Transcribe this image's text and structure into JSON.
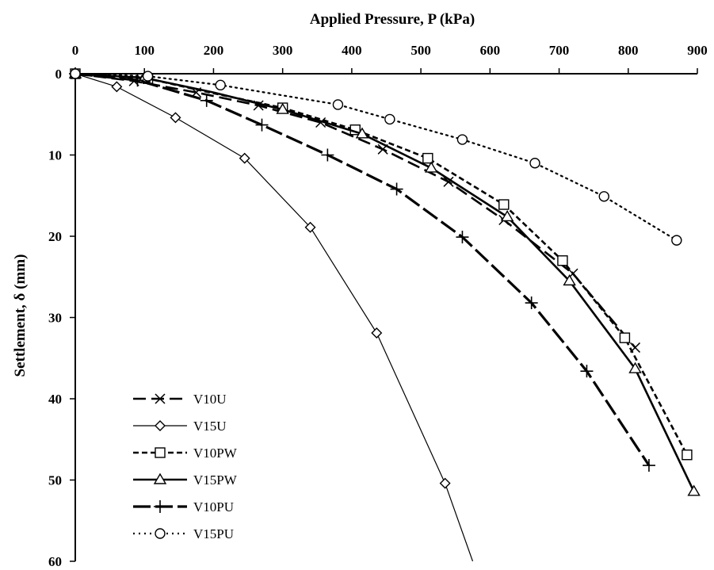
{
  "chart_data": {
    "type": "line",
    "title": "",
    "xlabel": "Applied Pressure, P (kPa)",
    "ylabel": "Settlement, δ (mm)",
    "xlim": [
      0,
      900
    ],
    "ylim": [
      0,
      60
    ],
    "y_inverted": true,
    "x_axis_position": "top",
    "x_ticks": [
      0,
      100,
      200,
      300,
      400,
      500,
      600,
      700,
      800,
      900
    ],
    "y_ticks": [
      0,
      10,
      20,
      30,
      40,
      50,
      60
    ],
    "grid": false,
    "legend_position": "bottom-left",
    "series": [
      {
        "name": "V10U",
        "line": "dashed-long",
        "marker": "x",
        "stroke_width": 2.6,
        "color": "#000000",
        "points": [
          [
            0,
            0
          ],
          [
            85,
            0.9
          ],
          [
            175,
            2.3
          ],
          [
            265,
            3.9
          ],
          [
            355,
            6.0
          ],
          [
            445,
            9.3
          ],
          [
            540,
            13.3
          ],
          [
            620,
            18.0
          ],
          [
            720,
            24.6
          ],
          [
            810,
            33.7
          ]
        ],
        "markers": [
          [
            0,
            0
          ],
          [
            85,
            0.9
          ],
          [
            175,
            2.3
          ],
          [
            265,
            3.9
          ],
          [
            355,
            6.0
          ],
          [
            445,
            9.3
          ],
          [
            540,
            13.3
          ],
          [
            620,
            18.0
          ],
          [
            720,
            24.6
          ],
          [
            810,
            33.7
          ]
        ]
      },
      {
        "name": "V15U",
        "line": "solid-thin",
        "marker": "diamond",
        "stroke_width": 1.2,
        "color": "#000000",
        "points": [
          [
            0,
            0
          ],
          [
            60,
            1.6
          ],
          [
            145,
            5.4
          ],
          [
            245,
            10.4
          ],
          [
            340,
            18.9
          ],
          [
            436,
            31.9
          ],
          [
            535,
            50.4
          ],
          [
            575,
            60
          ]
        ],
        "markers": [
          [
            0,
            0
          ],
          [
            60,
            1.6
          ],
          [
            145,
            5.4
          ],
          [
            245,
            10.4
          ],
          [
            340,
            18.9
          ],
          [
            436,
            31.9
          ],
          [
            535,
            50.4
          ]
        ]
      },
      {
        "name": "V10PW",
        "line": "dashed-short",
        "marker": "square",
        "stroke_width": 2.6,
        "color": "#000000",
        "points": [
          [
            0,
            0
          ],
          [
            105,
            0.6
          ],
          [
            200,
            2.4
          ],
          [
            300,
            4.2
          ],
          [
            405,
            6.9
          ],
          [
            510,
            10.4
          ],
          [
            620,
            16.1
          ],
          [
            705,
            23.0
          ],
          [
            795,
            32.5
          ],
          [
            885,
            46.9
          ]
        ],
        "markers": [
          [
            0,
            0
          ],
          [
            105,
            0.6
          ],
          [
            300,
            4.2
          ],
          [
            405,
            6.9
          ],
          [
            510,
            10.4
          ],
          [
            620,
            16.1
          ],
          [
            705,
            23.0
          ],
          [
            795,
            32.5
          ],
          [
            885,
            46.9
          ]
        ]
      },
      {
        "name": "V15PW",
        "line": "solid-thick",
        "marker": "triangle",
        "stroke_width": 2.6,
        "color": "#000000",
        "points": [
          [
            0,
            0
          ],
          [
            100,
            0.5
          ],
          [
            200,
            2.3
          ],
          [
            300,
            4.4
          ],
          [
            415,
            7.4
          ],
          [
            515,
            11.6
          ],
          [
            625,
            17.6
          ],
          [
            715,
            25.5
          ],
          [
            810,
            36.3
          ],
          [
            895,
            51.4
          ]
        ],
        "markers": [
          [
            0,
            0
          ],
          [
            100,
            0.5
          ],
          [
            300,
            4.4
          ],
          [
            415,
            7.4
          ],
          [
            515,
            11.6
          ],
          [
            625,
            17.6
          ],
          [
            715,
            25.5
          ],
          [
            810,
            36.3
          ],
          [
            895,
            51.4
          ]
        ]
      },
      {
        "name": "V10PU",
        "line": "dashed-long-thick",
        "marker": "plus",
        "stroke_width": 3.2,
        "color": "#000000",
        "points": [
          [
            0,
            0
          ],
          [
            90,
            0.8
          ],
          [
            190,
            3.3
          ],
          [
            270,
            6.3
          ],
          [
            365,
            10.0
          ],
          [
            465,
            14.2
          ],
          [
            560,
            20.1
          ],
          [
            660,
            28.2
          ],
          [
            740,
            36.6
          ],
          [
            830,
            48.2
          ]
        ],
        "markers": [
          [
            0,
            0
          ],
          [
            90,
            0.8
          ],
          [
            190,
            3.3
          ],
          [
            270,
            6.3
          ],
          [
            365,
            10.0
          ],
          [
            465,
            14.2
          ],
          [
            560,
            20.1
          ],
          [
            660,
            28.2
          ],
          [
            740,
            36.6
          ],
          [
            830,
            48.2
          ]
        ]
      },
      {
        "name": "V15PU",
        "line": "dotted",
        "marker": "circle",
        "stroke_width": 2.2,
        "color": "#000000",
        "points": [
          [
            0,
            0
          ],
          [
            105,
            0.3
          ],
          [
            210,
            1.4
          ],
          [
            380,
            3.8
          ],
          [
            455,
            5.6
          ],
          [
            560,
            8.1
          ],
          [
            665,
            11.0
          ],
          [
            765,
            15.1
          ],
          [
            870,
            20.5
          ]
        ],
        "markers": [
          [
            0,
            0
          ],
          [
            105,
            0.3
          ],
          [
            210,
            1.4
          ],
          [
            380,
            3.8
          ],
          [
            455,
            5.6
          ],
          [
            560,
            8.1
          ],
          [
            665,
            11.0
          ],
          [
            765,
            15.1
          ],
          [
            870,
            20.5
          ]
        ]
      }
    ]
  }
}
